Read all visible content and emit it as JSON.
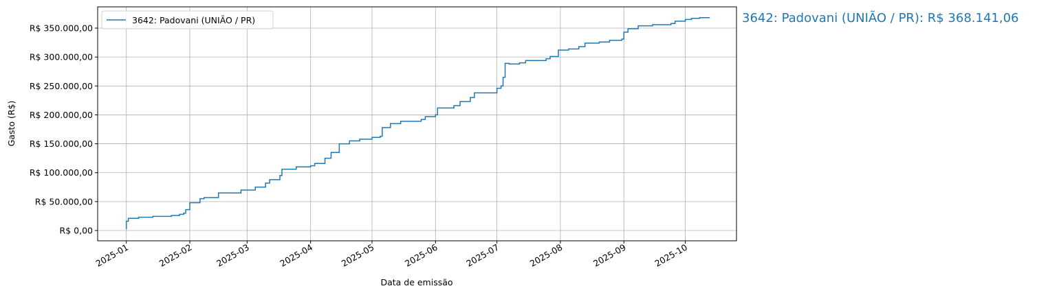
{
  "chart_data": {
    "type": "line",
    "drawstyle": "steps-post",
    "xlabel": "Data de emissão",
    "ylabel": "Gasto (R$)",
    "x_ticks": [
      "2025-01",
      "2025-02",
      "2025-03",
      "2025-04",
      "2025-05",
      "2025-06",
      "2025-07",
      "2025-08",
      "2025-09",
      "2025-10"
    ],
    "y_ticks": [
      "R$ 0,00",
      "R$ 50.000,00",
      "R$ 100.000,00",
      "R$ 150.000,00",
      "R$ 200.000,00",
      "R$ 250.000,00",
      "R$ 300.000,00",
      "R$ 350.000,00"
    ],
    "y_tick_values": [
      0,
      50000,
      100000,
      150000,
      200000,
      250000,
      300000,
      350000
    ],
    "xlim": [
      "2024-12-18",
      "2025-10-26"
    ],
    "ylim": [
      -17800,
      386800
    ],
    "grid": true,
    "legend_placement": "top-left",
    "color": "#1f77b4",
    "annotation": "3642: Padovani (UNIÃO / PR): R$ 368.141,06",
    "series": [
      {
        "name": "3642: Padovani (UNIÃO / PR)",
        "x": [
          "2025-01-01",
          "2025-01-01",
          "2025-01-02",
          "2025-01-07",
          "2025-01-14",
          "2025-01-23",
          "2025-01-27",
          "2025-01-29",
          "2025-01-30",
          "2025-02-01",
          "2025-02-06",
          "2025-02-08",
          "2025-02-15",
          "2025-02-26",
          "2025-03-05",
          "2025-03-10",
          "2025-03-12",
          "2025-03-17",
          "2025-03-18",
          "2025-03-25",
          "2025-04-01",
          "2025-04-03",
          "2025-04-08",
          "2025-04-11",
          "2025-04-15",
          "2025-04-20",
          "2025-04-25",
          "2025-05-01",
          "2025-05-05",
          "2025-05-06",
          "2025-05-10",
          "2025-05-15",
          "2025-05-25",
          "2025-05-27",
          "2025-06-01",
          "2025-06-02",
          "2025-06-10",
          "2025-06-13",
          "2025-06-18",
          "2025-06-20",
          "2025-07-01",
          "2025-07-03",
          "2025-07-04",
          "2025-07-05",
          "2025-07-07",
          "2025-07-12",
          "2025-07-15",
          "2025-07-25",
          "2025-07-27",
          "2025-07-31",
          "2025-08-05",
          "2025-08-10",
          "2025-08-13",
          "2025-08-20",
          "2025-08-25",
          "2025-08-31",
          "2025-09-01",
          "2025-09-03",
          "2025-09-08",
          "2025-09-15",
          "2025-09-24",
          "2025-09-26",
          "2025-10-01",
          "2025-10-04",
          "2025-10-08",
          "2025-10-13"
        ],
        "values": [
          2000,
          16000,
          21000,
          23000,
          24500,
          26000,
          28000,
          30000,
          36000,
          48000,
          55000,
          57000,
          65000,
          70000,
          75000,
          82000,
          88000,
          95000,
          106000,
          110000,
          112000,
          116000,
          125000,
          135000,
          150000,
          155000,
          158000,
          161000,
          163000,
          178000,
          185000,
          189000,
          192000,
          197000,
          200000,
          212000,
          216000,
          223000,
          230000,
          238000,
          246000,
          250000,
          265000,
          289000,
          288000,
          290000,
          294000,
          297000,
          301000,
          312000,
          314000,
          318000,
          324000,
          326000,
          329000,
          331000,
          343000,
          349000,
          354000,
          356000,
          358000,
          362000,
          365000,
          367000,
          368141.06,
          368141.06
        ]
      }
    ]
  }
}
